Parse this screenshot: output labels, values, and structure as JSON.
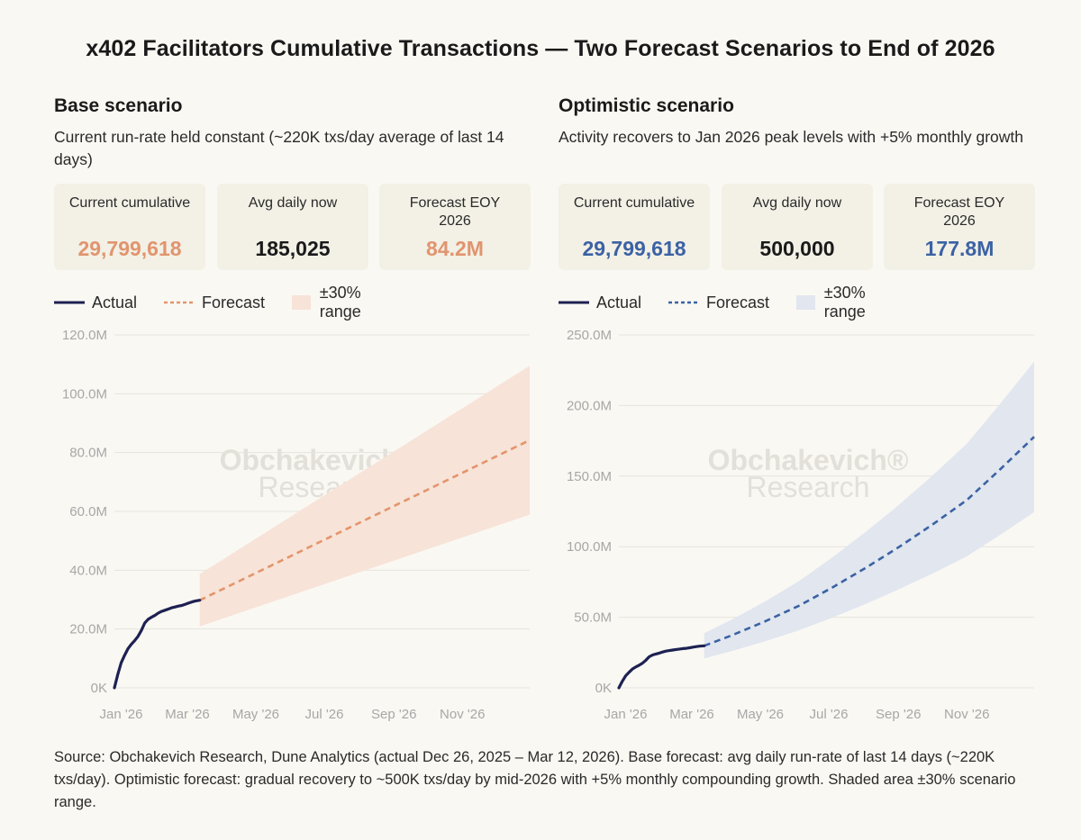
{
  "title": "x402 Facilitators Cumulative Transactions — Two Forecast Scenarios to End of 2026",
  "source_note": "Source: Obchakevich Research, Dune Analytics (actual Dec 26, 2025 – Mar 12, 2026). Base forecast: avg daily run-rate of last 14 days (~220K txs/day). Optimistic forecast: gradual recovery to ~500K txs/day by mid-2026 with +5% monthly compounding growth. Shaded area ±30% scenario range.",
  "colors": {
    "actual": "#1d2152",
    "base_forecast": "#e3956c",
    "base_band": "#f7e3d8",
    "opt_forecast": "#3b62a4",
    "opt_band": "#e1e6ef"
  },
  "panels": {
    "base": {
      "title": "Base scenario",
      "subtitle": "Current run-rate held constant (~220K txs/day average of last 14 days)",
      "cards": [
        {
          "label": "Current cumulative",
          "value": "29,799,618"
        },
        {
          "label": "Avg daily now",
          "value": "185,025"
        },
        {
          "label": "Forecast EOY 2026",
          "value": "84.2M"
        }
      ],
      "legend": {
        "actual": "Actual",
        "forecast": "Forecast",
        "range": "±30% range"
      },
      "watermark": [
        "Obchakevich®",
        "Research"
      ]
    },
    "optimistic": {
      "title": "Optimistic scenario",
      "subtitle": "Activity recovers to Jan 2026 peak levels with +5% monthly growth",
      "cards": [
        {
          "label": "Current cumulative",
          "value": "29,799,618"
        },
        {
          "label": "Avg daily now",
          "value": "500,000"
        },
        {
          "label": "Forecast EOY 2026",
          "value": "177.8M"
        }
      ],
      "legend": {
        "actual": "Actual",
        "forecast": "Forecast",
        "range": "±30% range"
      },
      "watermark": [
        "Obchakevich®",
        "Research"
      ]
    }
  },
  "chart_data": [
    {
      "type": "line",
      "title": "Base scenario",
      "x_unit": "days since Dec 26, 2025",
      "xlim": [
        0,
        370
      ],
      "x_ticks": [
        {
          "x": 6,
          "label": "Jan '26"
        },
        {
          "x": 65,
          "label": "Mar '26"
        },
        {
          "x": 126,
          "label": "May '26"
        },
        {
          "x": 187,
          "label": "Jul '26"
        },
        {
          "x": 249,
          "label": "Sep '26"
        },
        {
          "x": 310,
          "label": "Nov '26"
        }
      ],
      "ylim": [
        0,
        120
      ],
      "y_unit": "M",
      "y_ticks": [
        {
          "y": 0,
          "label": "0K"
        },
        {
          "y": 20,
          "label": "20.0M"
        },
        {
          "y": 40,
          "label": "40.0M"
        },
        {
          "y": 60,
          "label": "60.0M"
        },
        {
          "y": 80,
          "label": "80.0M"
        },
        {
          "y": 100,
          "label": "100.0M"
        },
        {
          "y": 120,
          "label": "120.0M"
        }
      ],
      "series": [
        {
          "name": "Actual",
          "x": [
            0,
            3,
            6,
            9,
            12,
            15,
            18,
            21,
            24,
            27,
            30,
            33,
            36,
            39,
            42,
            45,
            48,
            51,
            54,
            57,
            60,
            63,
            66,
            69,
            72,
            76
          ],
          "y": [
            0,
            4.5,
            8.5,
            11,
            13.3,
            14.8,
            16,
            17.5,
            19.5,
            22,
            23.3,
            24,
            24.6,
            25.4,
            26,
            26.4,
            26.8,
            27.2,
            27.5,
            27.8,
            28,
            28.4,
            28.8,
            29.2,
            29.5,
            29.8
          ]
        },
        {
          "name": "Forecast",
          "x": [
            76,
            370
          ],
          "y": [
            29.8,
            84.2
          ]
        },
        {
          "name": "Range upper (+30%)",
          "x": [
            76,
            370
          ],
          "y": [
            38.7,
            109.5
          ]
        },
        {
          "name": "Range lower (-30%)",
          "x": [
            76,
            370
          ],
          "y": [
            20.9,
            58.9
          ]
        }
      ]
    },
    {
      "type": "line",
      "title": "Optimistic scenario",
      "x_unit": "days since Dec 26, 2025",
      "xlim": [
        0,
        370
      ],
      "x_ticks": [
        {
          "x": 6,
          "label": "Jan '26"
        },
        {
          "x": 65,
          "label": "Mar '26"
        },
        {
          "x": 126,
          "label": "May '26"
        },
        {
          "x": 187,
          "label": "Jul '26"
        },
        {
          "x": 249,
          "label": "Sep '26"
        },
        {
          "x": 310,
          "label": "Nov '26"
        }
      ],
      "ylim": [
        0,
        250
      ],
      "y_unit": "M",
      "y_ticks": [
        {
          "y": 0,
          "label": "0K"
        },
        {
          "y": 50,
          "label": "50.0M"
        },
        {
          "y": 100,
          "label": "100.0M"
        },
        {
          "y": 150,
          "label": "150.0M"
        },
        {
          "y": 200,
          "label": "200.0M"
        },
        {
          "y": 250,
          "label": "250.0M"
        }
      ],
      "series": [
        {
          "name": "Actual",
          "x": [
            0,
            3,
            6,
            9,
            12,
            15,
            18,
            21,
            24,
            27,
            30,
            33,
            36,
            39,
            42,
            45,
            48,
            51,
            54,
            57,
            60,
            63,
            66,
            69,
            72,
            76
          ],
          "y": [
            0,
            4.5,
            8.5,
            11,
            13.3,
            14.8,
            16,
            17.5,
            19.5,
            22,
            23.3,
            24,
            24.6,
            25.4,
            26,
            26.4,
            26.8,
            27.2,
            27.5,
            27.8,
            28,
            28.4,
            28.8,
            29.2,
            29.5,
            29.8
          ]
        },
        {
          "name": "Forecast",
          "x": [
            76,
            100,
            130,
            160,
            190,
            220,
            250,
            280,
            310,
            340,
            370
          ],
          "y": [
            29.8,
            37,
            47,
            58,
            71,
            85,
            100,
            116,
            133,
            155,
            177.8
          ]
        },
        {
          "name": "Range upper (+30%)",
          "x": [
            76,
            100,
            130,
            160,
            190,
            220,
            250,
            280,
            310,
            340,
            370
          ],
          "y": [
            38.7,
            48.1,
            61.1,
            75.4,
            92.3,
            110.5,
            130,
            150.8,
            172.9,
            201.5,
            231.1
          ]
        },
        {
          "name": "Range lower (-30%)",
          "x": [
            76,
            100,
            130,
            160,
            190,
            220,
            250,
            280,
            310,
            340,
            370
          ],
          "y": [
            20.9,
            25.9,
            32.9,
            40.6,
            49.7,
            59.5,
            70,
            81.2,
            93.1,
            108.5,
            124.5
          ]
        }
      ]
    }
  ]
}
